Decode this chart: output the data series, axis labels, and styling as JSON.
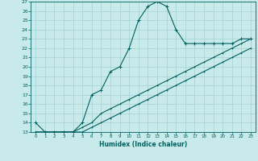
{
  "xlabel": "Humidex (Indice chaleur)",
  "background_color": "#c8eaea",
  "grid_color": "#aad4d4",
  "line_color": "#006060",
  "xlim": [
    -0.5,
    23.5
  ],
  "ylim": [
    13,
    27
  ],
  "yticks": [
    13,
    14,
    15,
    16,
    17,
    18,
    19,
    20,
    21,
    22,
    23,
    24,
    25,
    26,
    27
  ],
  "xticks": [
    0,
    1,
    2,
    3,
    4,
    5,
    6,
    7,
    8,
    9,
    10,
    11,
    12,
    13,
    14,
    15,
    16,
    17,
    18,
    19,
    20,
    21,
    22,
    23
  ],
  "series1_x": [
    0,
    1,
    2,
    3,
    4,
    5,
    6,
    7,
    8,
    9,
    10,
    11,
    12,
    13,
    14,
    15,
    16,
    17,
    18,
    19,
    20,
    21,
    22,
    23
  ],
  "series1_y": [
    14,
    13,
    13,
    13,
    13,
    14,
    17,
    17.5,
    19.5,
    20,
    22,
    25,
    26.5,
    27,
    26.5,
    24,
    22.5,
    22.5,
    22.5,
    22.5,
    22.5,
    22.5,
    23,
    23
  ],
  "series2_x": [
    0,
    1,
    2,
    3,
    4,
    5,
    6,
    7,
    8,
    9,
    10,
    11,
    12,
    13,
    14,
    15,
    16,
    17,
    18,
    19,
    20,
    21,
    22,
    23
  ],
  "series2_y": [
    13,
    13,
    13,
    13,
    13,
    13.5,
    14,
    15,
    15.5,
    16,
    16.5,
    17,
    17.5,
    18,
    18.5,
    19,
    19.5,
    20,
    20.5,
    21,
    21.5,
    22,
    22.5,
    23
  ],
  "series3_x": [
    0,
    1,
    2,
    3,
    4,
    5,
    6,
    7,
    8,
    9,
    10,
    11,
    12,
    13,
    14,
    15,
    16,
    17,
    18,
    19,
    20,
    21,
    22,
    23
  ],
  "series3_y": [
    13,
    13,
    13,
    13,
    13,
    13,
    13.5,
    14,
    14.5,
    15,
    15.5,
    16,
    16.5,
    17,
    17.5,
    18,
    18.5,
    19,
    19.5,
    20,
    20.5,
    21,
    21.5,
    22
  ]
}
